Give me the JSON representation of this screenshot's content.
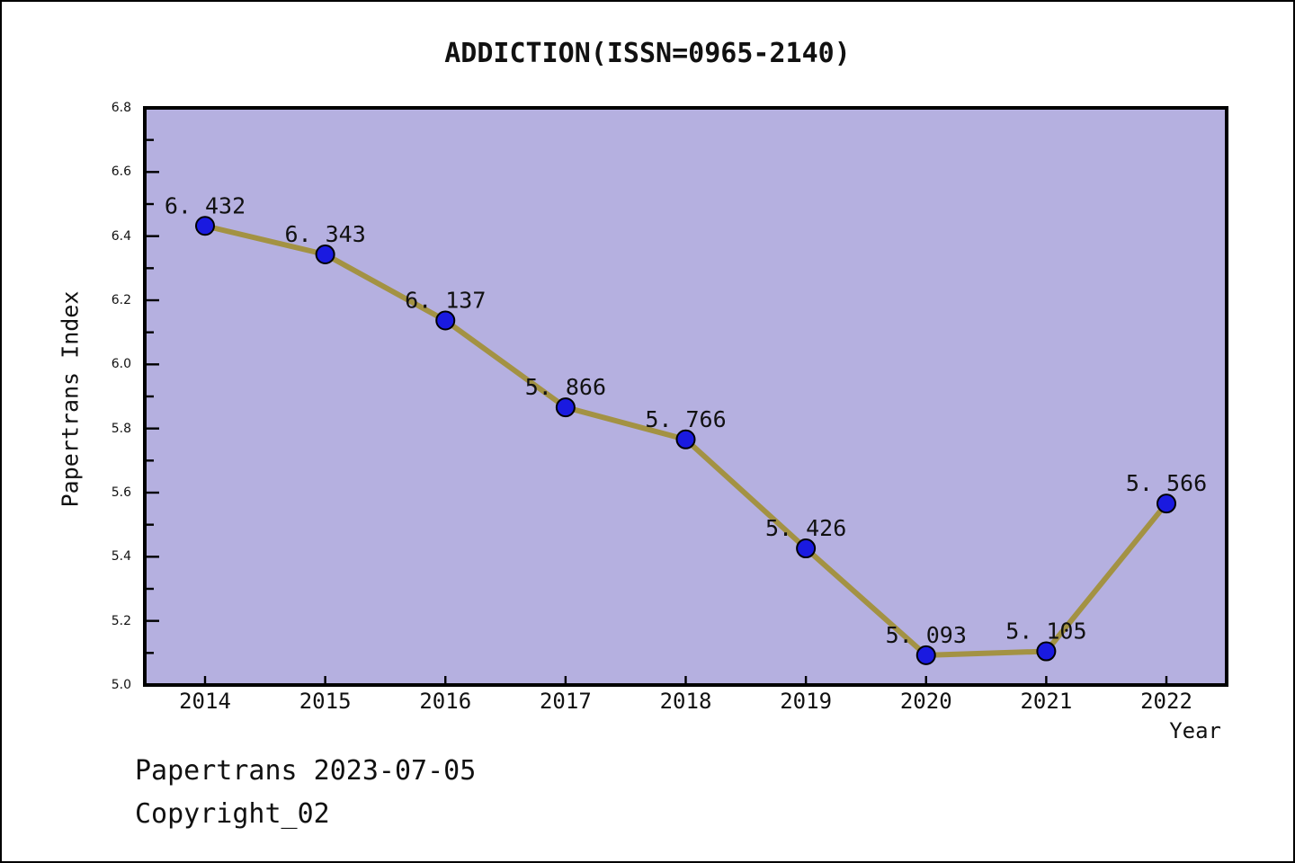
{
  "title": "ADDICTION(ISSN=0965-2140)",
  "footer": {
    "line1": "Papertrans 2023-07-05",
    "line2": "Copyright_02"
  },
  "chart_data": {
    "type": "line",
    "title": "ADDICTION(ISSN=0965-2140)",
    "xlabel": "Year",
    "ylabel": "Papertrans Index",
    "x": [
      2014,
      2015,
      2016,
      2017,
      2018,
      2019,
      2020,
      2021,
      2022
    ],
    "series": [
      {
        "name": "Papertrans Index",
        "values": [
          6.432,
          6.343,
          6.137,
          5.866,
          5.766,
          5.426,
          5.093,
          5.105,
          5.566
        ]
      }
    ],
    "point_labels": [
      "6.432",
      "6.343",
      "6.137",
      "5.866",
      "5.766",
      "5.426",
      "5.093",
      "5.105",
      "5.566"
    ],
    "ylim": [
      5.0,
      6.8
    ],
    "ytick_step": 0.2,
    "ytick_minor_step": 0.1,
    "ytick_labels": [
      "5.0",
      "5.2",
      "5.4",
      "5.6",
      "5.8",
      "6.0",
      "6.2",
      "6.4",
      "6.6",
      "6.8"
    ],
    "grid": false,
    "legend_position": "none",
    "colors": {
      "plot_bg": "#b5b0e0",
      "line": "#a39243",
      "marker_fill": "#1a1ae0",
      "marker_edge": "#000000",
      "frame": "#000000",
      "tick": "#000000",
      "text": "#111111"
    }
  }
}
